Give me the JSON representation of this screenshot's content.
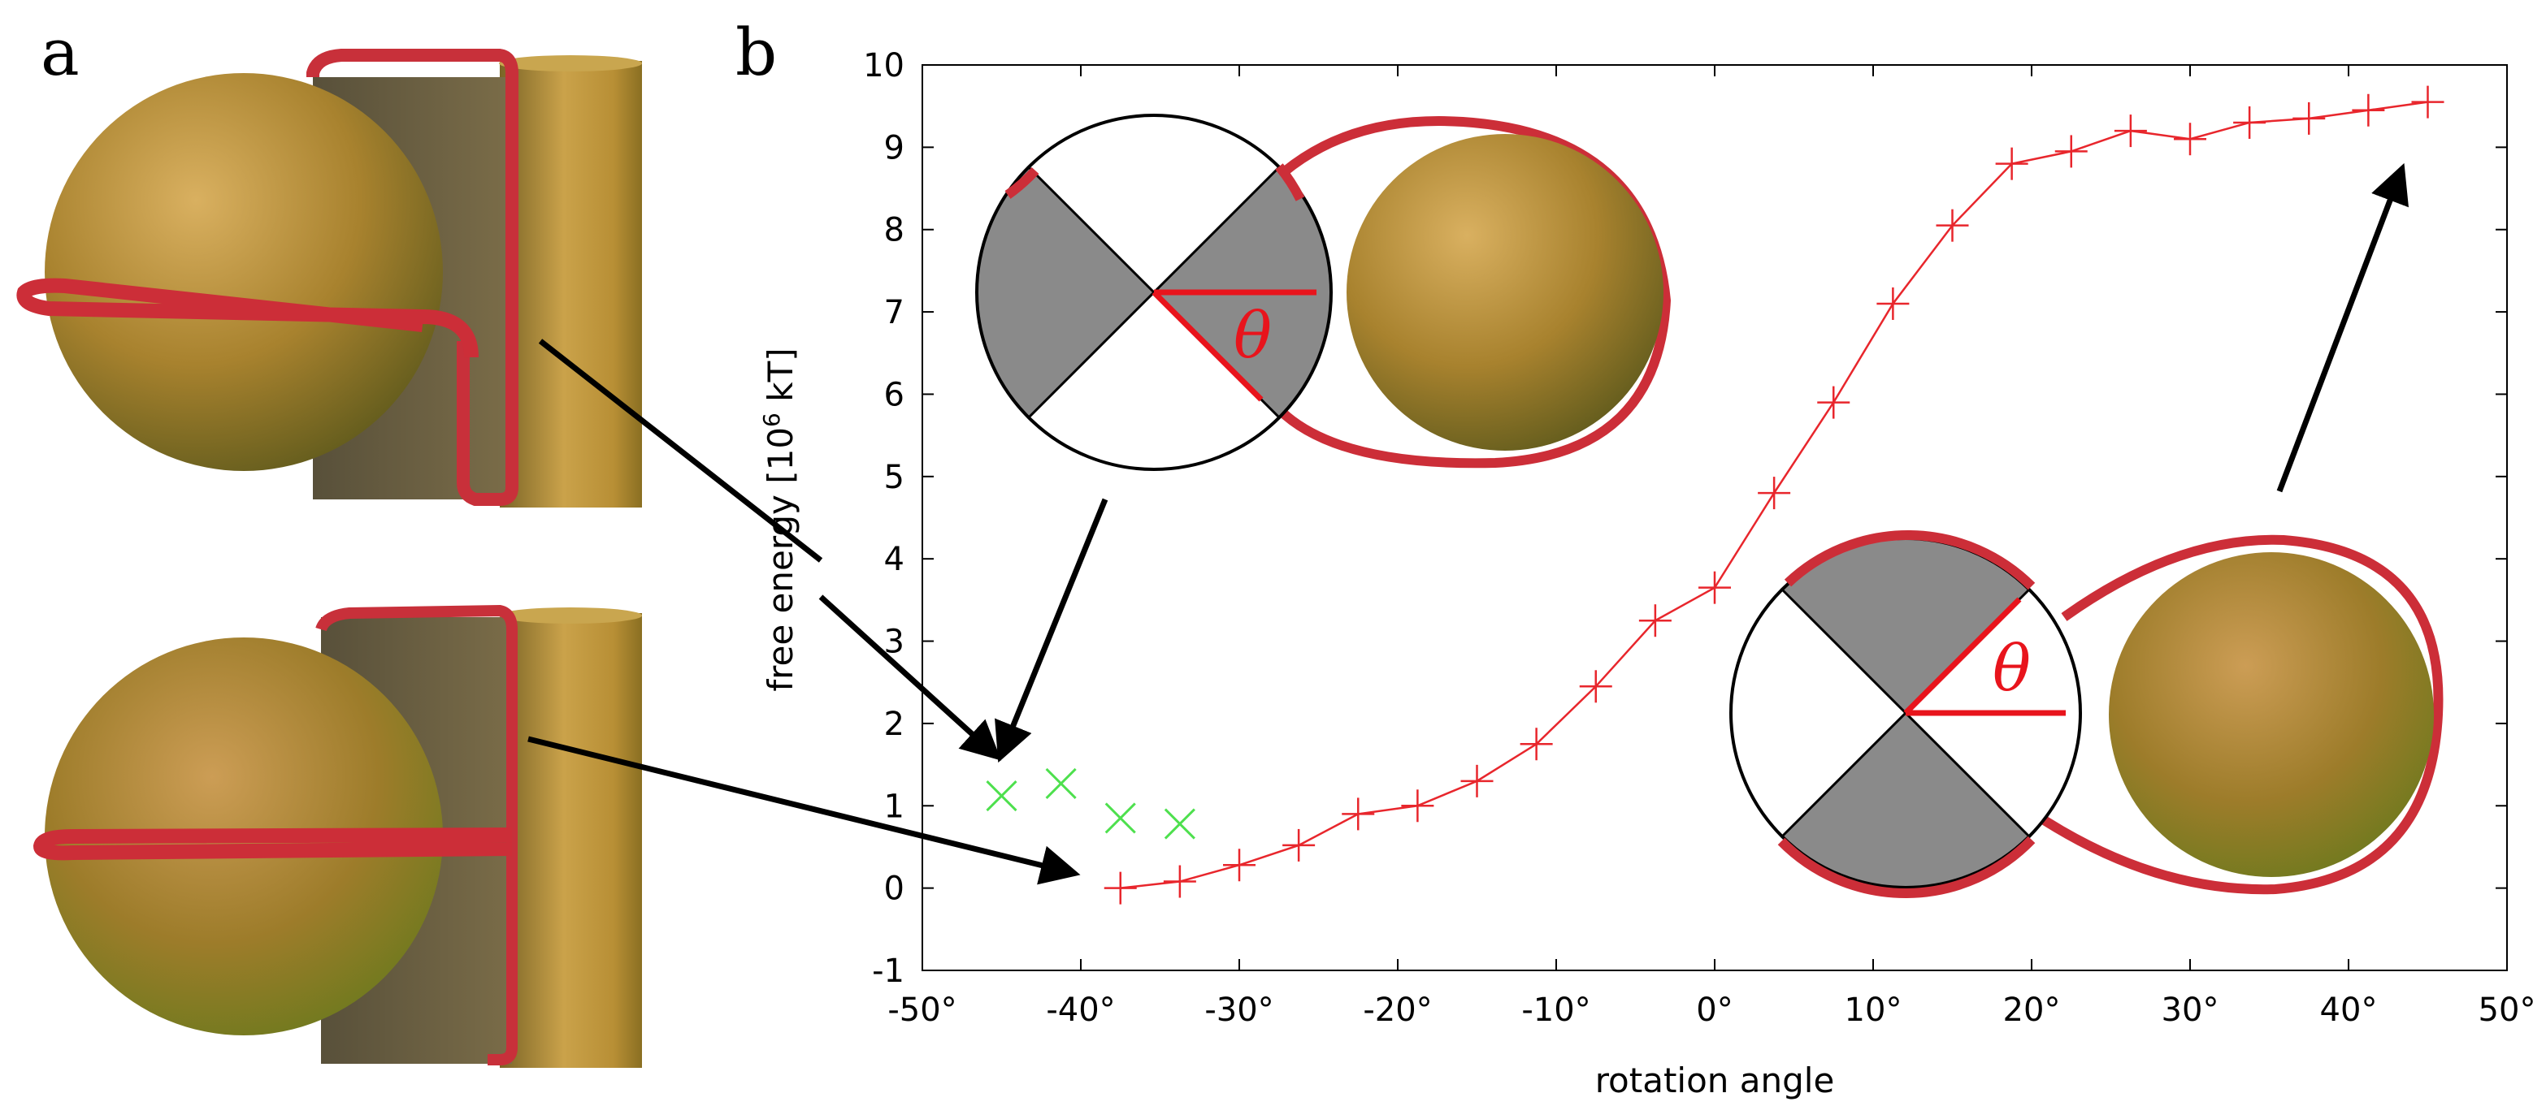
{
  "panels": {
    "a": "a",
    "b": "b"
  },
  "chart_data": {
    "type": "line",
    "xlabel": "rotation angle",
    "ylabel": "free energy [10",
    "ylabel_sup": "6",
    "ylabel_tail": " kT]",
    "xlim": [
      -50,
      50
    ],
    "ylim": [
      -1,
      10
    ],
    "xticks": [
      -50,
      -40,
      -30,
      -20,
      -10,
      0,
      10,
      20,
      30,
      40,
      50
    ],
    "xtick_labels": [
      "-50°",
      "-40°",
      "-30°",
      "-20°",
      "-10°",
      "0°",
      "10°",
      "20°",
      "30°",
      "40°",
      "50°"
    ],
    "yticks": [
      -1,
      0,
      1,
      2,
      3,
      4,
      5,
      6,
      7,
      8,
      9,
      10
    ],
    "ytick_labels": [
      "-1",
      "0",
      "1",
      "2",
      "3",
      "4",
      "5",
      "6",
      "7",
      "8",
      "9",
      "10"
    ],
    "series": [
      {
        "name": "red",
        "color": "#e8262c",
        "marker": "plus",
        "line": true,
        "x": [
          -37.5,
          -33.75,
          -30,
          -26.25,
          -22.5,
          -18.75,
          -15,
          -11.25,
          -7.5,
          -3.75,
          0,
          3.75,
          7.5,
          11.25,
          15,
          18.75,
          22.5,
          26.25,
          30,
          33.75,
          37.5,
          41.25,
          45
        ],
        "y": [
          0.0,
          0.08,
          0.28,
          0.52,
          0.9,
          1.0,
          1.3,
          1.75,
          2.45,
          3.25,
          3.65,
          4.8,
          5.9,
          7.1,
          8.05,
          8.8,
          8.95,
          9.2,
          9.1,
          9.3,
          9.35,
          9.45,
          9.55
        ]
      },
      {
        "name": "green",
        "color": "#4ee04e",
        "marker": "cross",
        "line": false,
        "x": [
          -45,
          -41.25,
          -37.5,
          -33.75
        ],
        "y": [
          1.12,
          1.27,
          0.85,
          0.78
        ]
      }
    ],
    "annotations": [
      {
        "text": "θ",
        "where": "upper inset"
      },
      {
        "text": "θ",
        "where": "lower inset"
      }
    ]
  }
}
